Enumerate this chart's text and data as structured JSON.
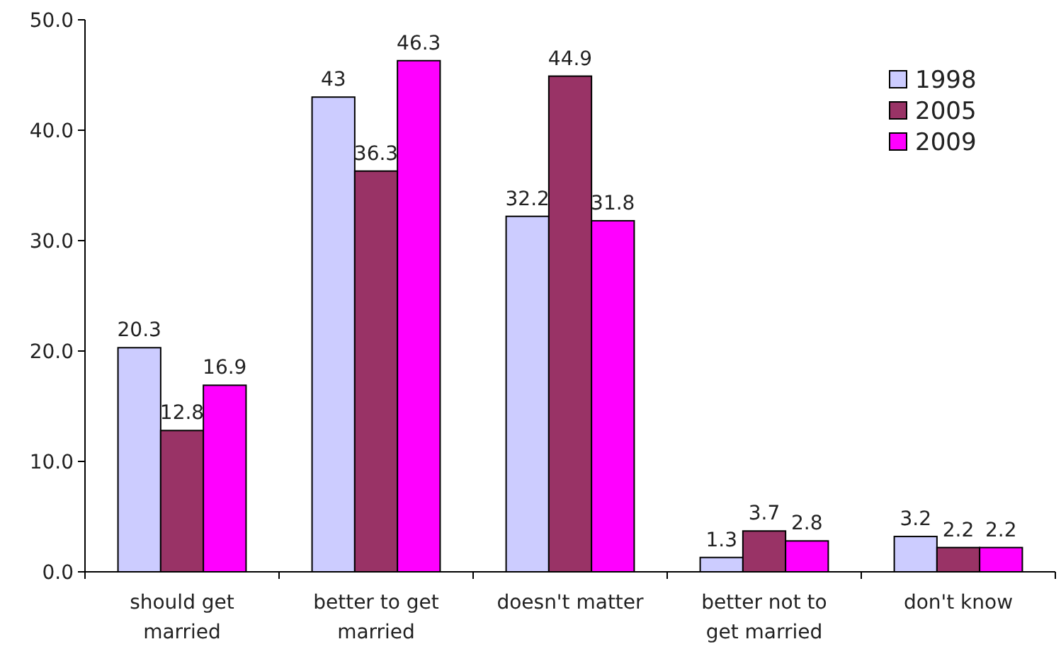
{
  "chart_data": {
    "type": "bar",
    "categories": [
      "should get married",
      "better to get married",
      "doesn't matter",
      "better not to get married",
      "don't know"
    ],
    "series": [
      {
        "name": "1998",
        "color": "#ccccff",
        "values": [
          20.3,
          43,
          32.2,
          1.3,
          3.2
        ]
      },
      {
        "name": "2005",
        "color": "#993366",
        "values": [
          12.8,
          36.3,
          44.9,
          3.7,
          2.2
        ]
      },
      {
        "name": "2009",
        "color": "#ff00ff",
        "values": [
          16.9,
          46.3,
          31.8,
          2.8,
          2.2
        ]
      }
    ],
    "ylim": [
      0,
      50
    ],
    "yticks": [
      {
        "value": 0,
        "label": "0.0"
      },
      {
        "value": 10,
        "label": "10.0"
      },
      {
        "value": 20,
        "label": "20.0"
      },
      {
        "value": 30,
        "label": "30.0"
      },
      {
        "value": 40,
        "label": "40.0"
      },
      {
        "value": 50,
        "label": "50.0"
      }
    ],
    "data_labels": true,
    "legend": "top right",
    "grid": false
  }
}
